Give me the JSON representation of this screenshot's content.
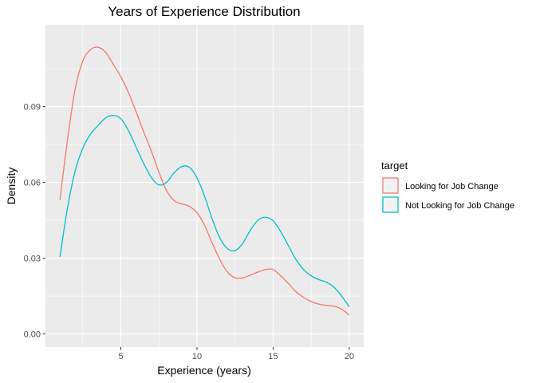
{
  "chart_data": {
    "type": "line",
    "title": "Years of Experience Distribution",
    "xlabel": "Experience (years)",
    "ylabel": "Density",
    "xlim": [
      0.05,
      20.95
    ],
    "ylim": [
      -0.0052,
      0.1224
    ],
    "x_ticks": [
      {
        "value": 5,
        "label": "5"
      },
      {
        "value": 10,
        "label": "10"
      },
      {
        "value": 15,
        "label": "15"
      },
      {
        "value": 20,
        "label": "20"
      }
    ],
    "y_ticks": [
      {
        "value": 0.0,
        "label": "0.00"
      },
      {
        "value": 0.03,
        "label": "0.03"
      },
      {
        "value": 0.06,
        "label": "0.06"
      },
      {
        "value": 0.09,
        "label": "0.09"
      }
    ],
    "grid": true,
    "legend": {
      "title": "target",
      "position": "right"
    },
    "series": [
      {
        "name": "Looking for Job Change",
        "color": "#F8766D",
        "x": [
          1.0,
          1.5,
          2.0,
          2.5,
          3.0,
          3.5,
          4.0,
          4.5,
          5.0,
          5.5,
          6.0,
          6.5,
          7.0,
          7.5,
          8.0,
          8.5,
          9.0,
          9.5,
          10.0,
          10.5,
          11.0,
          11.5,
          12.0,
          12.5,
          13.0,
          13.5,
          14.0,
          14.5,
          15.0,
          15.5,
          16.0,
          16.5,
          17.0,
          17.5,
          18.0,
          18.5,
          19.0,
          19.5,
          20.0
        ],
        "y": [
          0.053,
          0.077,
          0.097,
          0.108,
          0.1125,
          0.1135,
          0.1115,
          0.1068,
          0.1018,
          0.0955,
          0.088,
          0.08,
          0.0725,
          0.064,
          0.0568,
          0.0528,
          0.0515,
          0.0505,
          0.048,
          0.043,
          0.036,
          0.0295,
          0.0245,
          0.0222,
          0.0222,
          0.0233,
          0.0245,
          0.0255,
          0.0255,
          0.023,
          0.02,
          0.0167,
          0.0145,
          0.0128,
          0.0118,
          0.0113,
          0.011,
          0.0098,
          0.0075
        ]
      },
      {
        "name": "Not Looking for Job Change",
        "color": "#00BFC4",
        "x": [
          1.0,
          1.5,
          2.0,
          2.5,
          3.0,
          3.5,
          4.0,
          4.5,
          5.0,
          5.5,
          6.0,
          6.5,
          7.0,
          7.5,
          8.0,
          8.5,
          9.0,
          9.5,
          10.0,
          10.5,
          11.0,
          11.5,
          12.0,
          12.5,
          13.0,
          13.5,
          14.0,
          14.5,
          15.0,
          15.5,
          16.0,
          16.5,
          17.0,
          17.5,
          18.0,
          18.5,
          19.0,
          19.5,
          20.0
        ],
        "y": [
          0.0305,
          0.05,
          0.0645,
          0.0735,
          0.079,
          0.0825,
          0.0855,
          0.0865,
          0.0852,
          0.0805,
          0.074,
          0.0675,
          0.062,
          0.059,
          0.06,
          0.0638,
          0.0663,
          0.066,
          0.0618,
          0.0545,
          0.0455,
          0.038,
          0.0338,
          0.033,
          0.0358,
          0.041,
          0.045,
          0.0462,
          0.0448,
          0.0405,
          0.035,
          0.0295,
          0.0255,
          0.023,
          0.0215,
          0.0205,
          0.0185,
          0.015,
          0.0108
        ]
      }
    ]
  }
}
